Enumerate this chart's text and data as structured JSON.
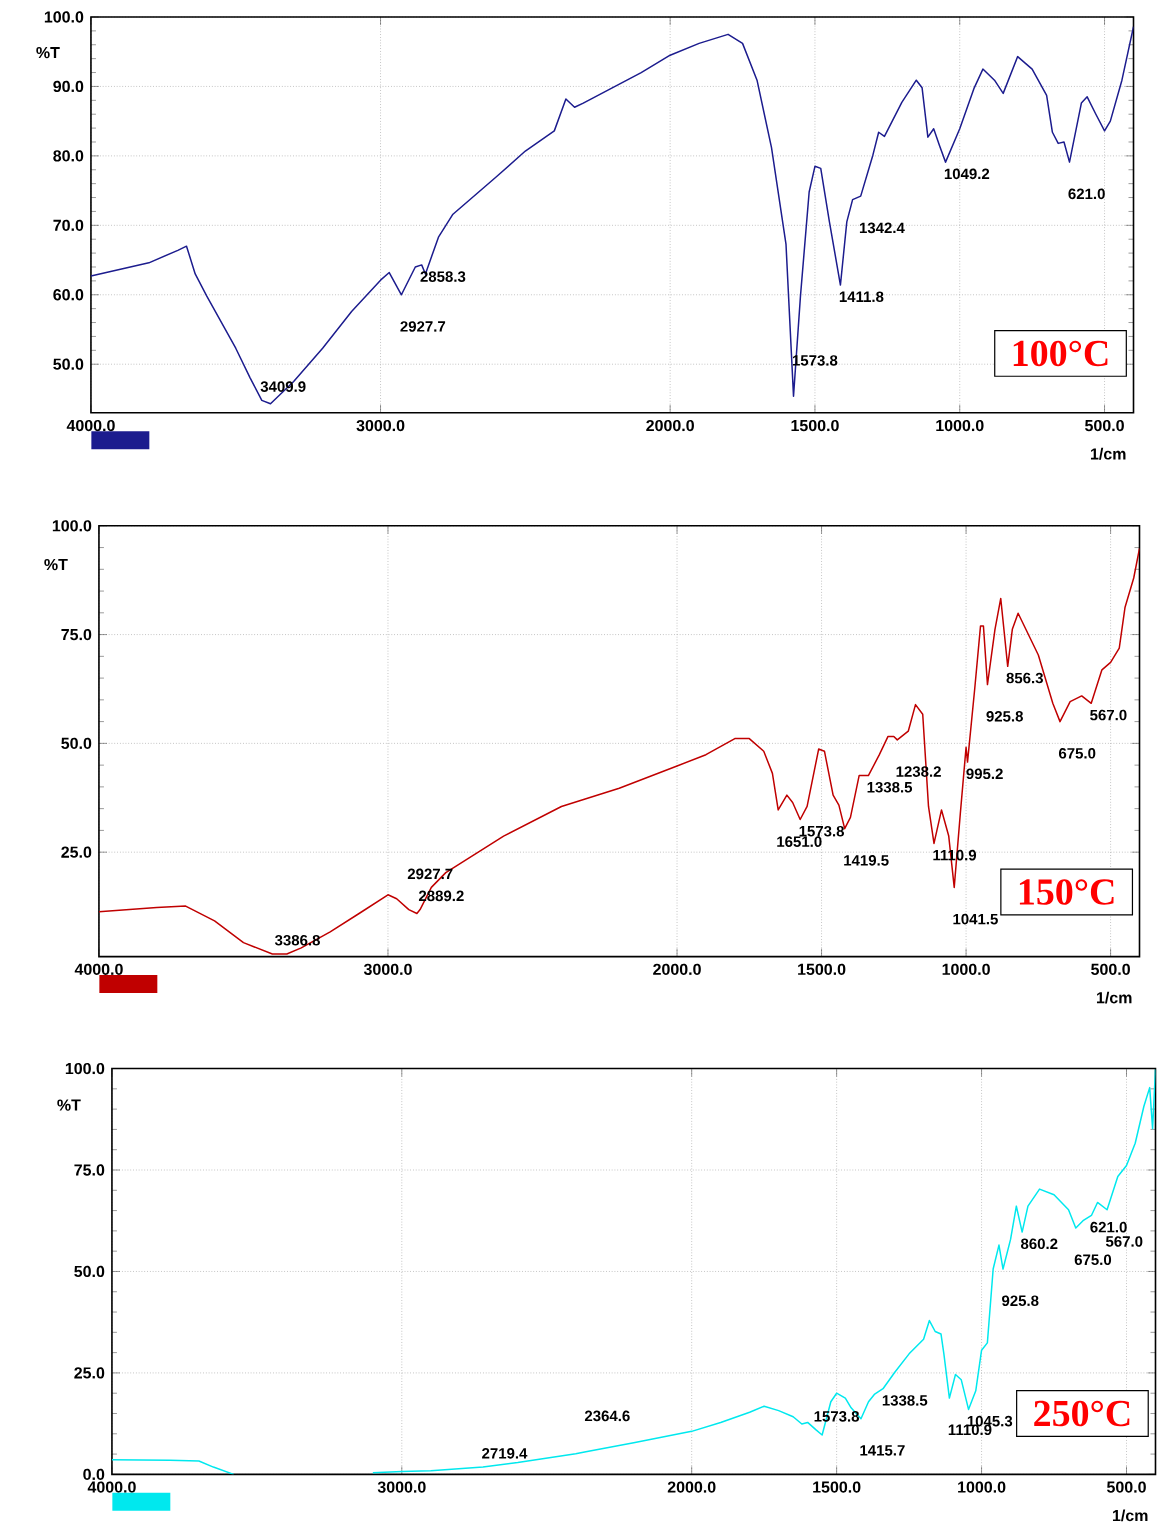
{
  "chart_data": [
    {
      "type": "line",
      "xlabel": "1/cm",
      "ylabel": "%T",
      "grid": true,
      "xlim": [
        4000,
        400
      ],
      "ylim": [
        43,
        100
      ],
      "xticks": [
        {
          "value": 4000,
          "label": "4000.0"
        },
        {
          "value": 3000,
          "label": "3000.0"
        },
        {
          "value": 2000,
          "label": "2000.0"
        },
        {
          "value": 1500,
          "label": "1500.0"
        },
        {
          "value": 1000,
          "label": "1000.0"
        },
        {
          "value": 500,
          "label": "500.0"
        }
      ],
      "yticks": [
        {
          "value": 50,
          "label": "50.0"
        },
        {
          "value": 60,
          "label": "60.0"
        },
        {
          "value": 70,
          "label": "70.0"
        },
        {
          "value": 80,
          "label": "80.0"
        },
        {
          "value": 90,
          "label": "90.0"
        },
        {
          "value": 100,
          "label": "100.0"
        }
      ],
      "x": [
        4000,
        3800,
        3700,
        3670,
        3640,
        3600,
        3500,
        3450,
        3410,
        3380,
        3300,
        3200,
        3100,
        3000,
        2970,
        2928,
        2880,
        2858,
        2845,
        2800,
        2750,
        2600,
        2500,
        2400,
        2360,
        2330,
        2300,
        2200,
        2100,
        2000,
        1900,
        1800,
        1750,
        1700,
        1650,
        1600,
        1574,
        1550,
        1520,
        1500,
        1480,
        1450,
        1412,
        1390,
        1370,
        1342,
        1300,
        1280,
        1260,
        1200,
        1150,
        1130,
        1110,
        1090,
        1070,
        1049,
        1000,
        950,
        920,
        880,
        850,
        800,
        750,
        700,
        680,
        660,
        640,
        621,
        580,
        560,
        530,
        500,
        480,
        440,
        400
      ],
      "series": [
        {
          "color": "#1c1c8e",
          "values": [
            62.7,
            64.6,
            66.4,
            67,
            63,
            59.8,
            52.3,
            48,
            44.8,
            44.3,
            47.5,
            52.3,
            57.6,
            62.1,
            63.2,
            60,
            64,
            64.3,
            63,
            68.3,
            71.6,
            77,
            80.7,
            83.6,
            88.2,
            87,
            87.6,
            89.8,
            92,
            94.5,
            96.2,
            97.5,
            96.2,
            90.9,
            81.2,
            67.3,
            45.4,
            59.8,
            74.8,
            78.5,
            78.2,
            70.5,
            61.4,
            70.5,
            73.7,
            74.2,
            80.1,
            83.4,
            82.8,
            87.7,
            90.9,
            89.8,
            82.7,
            83.9,
            81.5,
            79.1,
            83.9,
            89.8,
            92.5,
            90.9,
            89,
            94.3,
            92.5,
            88.7,
            83.4,
            81.8,
            82,
            79.1,
            87.6,
            88.5,
            86,
            83.6,
            85,
            90.9,
            98.6
          ]
        }
      ],
      "annotations": [
        {
          "text": "3409.9",
          "x": 3409.9,
          "y": 44.8
        },
        {
          "text": "2927.7",
          "x": 2927.7,
          "y": 60
        },
        {
          "text": "2858.3",
          "x": 2858.3,
          "y": 64.3
        },
        {
          "text": "1573.8",
          "x": 1573.8,
          "y": 45.4
        },
        {
          "text": "1411.8",
          "x": 1411.8,
          "y": 61.4
        },
        {
          "text": "1342.4",
          "x": 1342.4,
          "y": 74.2
        },
        {
          "text": "1049.2",
          "x": 1049.2,
          "y": 79.1
        },
        {
          "text": "621.0",
          "x": 621.0,
          "y": 79.1
        },
        "100°C"
      ]
    },
    {
      "type": "line",
      "xlabel": "1/cm",
      "ylabel": "%T",
      "grid": true,
      "xlim": [
        4000,
        400
      ],
      "ylim": [
        1,
        100
      ],
      "xticks": [
        {
          "value": 4000,
          "label": "4000.0"
        },
        {
          "value": 3000,
          "label": "3000.0"
        },
        {
          "value": 2000,
          "label": "2000.0"
        },
        {
          "value": 1500,
          "label": "1500.0"
        },
        {
          "value": 1000,
          "label": "1000.0"
        },
        {
          "value": 500,
          "label": "500.0"
        }
      ],
      "yticks": [
        {
          "value": 25,
          "label": "25.0"
        },
        {
          "value": 50,
          "label": "50.0"
        },
        {
          "value": 75,
          "label": "75.0"
        },
        {
          "value": 100,
          "label": "100.0"
        }
      ],
      "x": [
        4000,
        3800,
        3700,
        3600,
        3500,
        3400,
        3350,
        3300,
        3200,
        3100,
        3000,
        2970,
        2928,
        2900,
        2889,
        2850,
        2800,
        2600,
        2400,
        2200,
        2000,
        1900,
        1800,
        1750,
        1700,
        1670,
        1650,
        1620,
        1600,
        1574,
        1550,
        1510,
        1490,
        1460,
        1440,
        1420,
        1400,
        1370,
        1338,
        1300,
        1270,
        1250,
        1238,
        1200,
        1175,
        1150,
        1130,
        1111,
        1085,
        1060,
        1041,
        1020,
        1000,
        995,
        970,
        950,
        940,
        926,
        900,
        880,
        856,
        840,
        820,
        750,
        700,
        675,
        640,
        600,
        567,
        530,
        500,
        470,
        450,
        420,
        400
      ],
      "series": [
        {
          "color": "#c00000",
          "values": [
            11.3,
            12.3,
            12.6,
            9.2,
            4.2,
            1.6,
            1.6,
            3,
            6.7,
            10.9,
            15.2,
            14.3,
            11.8,
            10.9,
            11.8,
            16.9,
            20.3,
            28.7,
            35.5,
            39.7,
            44.8,
            47.4,
            51.1,
            51.1,
            48.2,
            43.1,
            34.7,
            38.1,
            36.4,
            32.5,
            35.5,
            48.7,
            48.2,
            38.1,
            35.8,
            30.4,
            33,
            42.6,
            42.6,
            47.4,
            51.6,
            51.6,
            50.8,
            52.8,
            58.9,
            56.7,
            35.5,
            27,
            34.7,
            28.7,
            16.9,
            33.8,
            49.1,
            45.7,
            62.6,
            77,
            77,
            63.5,
            76.2,
            83.3,
            67.7,
            76.2,
            79.9,
            70.3,
            59.2,
            55,
            59.6,
            60.9,
            59.2,
            66.9,
            68.6,
            71.9,
            81.3,
            88,
            94.8
          ]
        }
      ],
      "annotations": [
        {
          "text": "3386.8",
          "x": 3386.8,
          "y": 1.6
        },
        {
          "text": "2927.7",
          "x": 2927.7,
          "y": 11.8
        },
        {
          "text": "2889.2",
          "x": 2889.2,
          "y": 11.8
        },
        {
          "text": "1651.0",
          "x": 1651.0,
          "y": 34.7
        },
        {
          "text": "1573.8",
          "x": 1573.8,
          "y": 32.5
        },
        {
          "text": "1419.5",
          "x": 1419.5,
          "y": 30.4
        },
        {
          "text": "1338.5",
          "x": 1338.5,
          "y": 42.6
        },
        {
          "text": "1238.2",
          "x": 1238.2,
          "y": 50.8
        },
        {
          "text": "1110.9",
          "x": 1110.9,
          "y": 27
        },
        {
          "text": "1041.5",
          "x": 1041.5,
          "y": 16.9
        },
        {
          "text": "995.2",
          "x": 995.2,
          "y": 45.7
        },
        {
          "text": "925.8",
          "x": 925.8,
          "y": 63.5
        },
        {
          "text": "856.3",
          "x": 856.3,
          "y": 67.7
        },
        {
          "text": "675.0",
          "x": 675.0,
          "y": 55
        },
        {
          "text": "567.0",
          "x": 567.0,
          "y": 59.2
        },
        "150°C"
      ]
    },
    {
      "type": "line",
      "xlabel": "1/cm",
      "ylabel": "%T",
      "grid": true,
      "xlim": [
        4000,
        400
      ],
      "ylim": [
        0,
        100
      ],
      "xticks": [
        {
          "value": 4000,
          "label": "4000.0"
        },
        {
          "value": 3000,
          "label": "3000.0"
        },
        {
          "value": 2000,
          "label": "2000.0"
        },
        {
          "value": 1500,
          "label": "1500.0"
        },
        {
          "value": 1000,
          "label": "1000.0"
        },
        {
          "value": 500,
          "label": "500.0"
        }
      ],
      "yticks": [
        {
          "value": 0,
          "label": "0.0"
        },
        {
          "value": 25,
          "label": "25.0"
        },
        {
          "value": 50,
          "label": "50.0"
        },
        {
          "value": 75,
          "label": "75.0"
        },
        {
          "value": 100,
          "label": "100.0"
        }
      ],
      "x": [
        4000,
        3800,
        3700,
        3650,
        3580,
        3400,
        3300,
        3100,
        3000,
        2900,
        2720,
        2600,
        2400,
        2365,
        2200,
        2000,
        1900,
        1800,
        1750,
        1700,
        1650,
        1620,
        1600,
        1570,
        1550,
        1520,
        1500,
        1470,
        1450,
        1416,
        1390,
        1370,
        1340,
        1300,
        1250,
        1200,
        1180,
        1160,
        1140,
        1130,
        1111,
        1090,
        1070,
        1045,
        1020,
        1000,
        980,
        960,
        940,
        926,
        900,
        880,
        860,
        840,
        800,
        750,
        700,
        675,
        650,
        621,
        600,
        567,
        530,
        500,
        470,
        440,
        420,
        410,
        400
      ],
      "series": [
        {
          "color": "#00e8ee",
          "values": [
            3.6,
            3.5,
            3.3,
            1.8,
            0,
            null,
            null,
            0.4,
            0.7,
            0.9,
            1.8,
            2.9,
            5.1,
            5.6,
            7.8,
            10.6,
            12.8,
            15.3,
            16.8,
            15.7,
            14.2,
            12.4,
            12.8,
            10.9,
            9.7,
            17.9,
            20,
            18.8,
            16.4,
            13.7,
            17.9,
            19.7,
            21.1,
            25.1,
            29.7,
            33.3,
            37.9,
            35.2,
            34.6,
            29.7,
            18.8,
            24.6,
            23.3,
            16,
            20.6,
            30.6,
            32.4,
            50.6,
            56.5,
            50.6,
            57.9,
            66.1,
            59.7,
            66.1,
            70.3,
            68.9,
            65.2,
            60.7,
            62.5,
            63.8,
            67,
            65.2,
            73.4,
            76.1,
            81.6,
            90.7,
            95.3,
            85.2,
            99.8
          ]
        }
      ],
      "annotations": [
        {
          "text": "2719.4",
          "x": 2719.4,
          "y": 1.8
        },
        {
          "text": "2364.6",
          "x": 2364.6,
          "y": 5.6
        },
        {
          "text": "1573.8",
          "x": 1573.8,
          "y": 10.9
        },
        {
          "text": "1415.7",
          "x": 1415.7,
          "y": 13.7
        },
        {
          "text": "1338.5",
          "x": 1338.5,
          "y": 21.1
        },
        {
          "text": "1110.9",
          "x": 1110.9,
          "y": 18.8
        },
        {
          "text": "1045.3",
          "x": 1045.3,
          "y": 16
        },
        {
          "text": "925.8",
          "x": 925.8,
          "y": 50.6
        },
        {
          "text": "860.2",
          "x": 860.2,
          "y": 59.7
        },
        {
          "text": "675.0",
          "x": 675.0,
          "y": 60.7
        },
        {
          "text": "621.0",
          "x": 621.0,
          "y": 63.8
        },
        {
          "text": "567.0",
          "x": 567.0,
          "y": 65.2
        },
        "250°C"
      ]
    }
  ]
}
